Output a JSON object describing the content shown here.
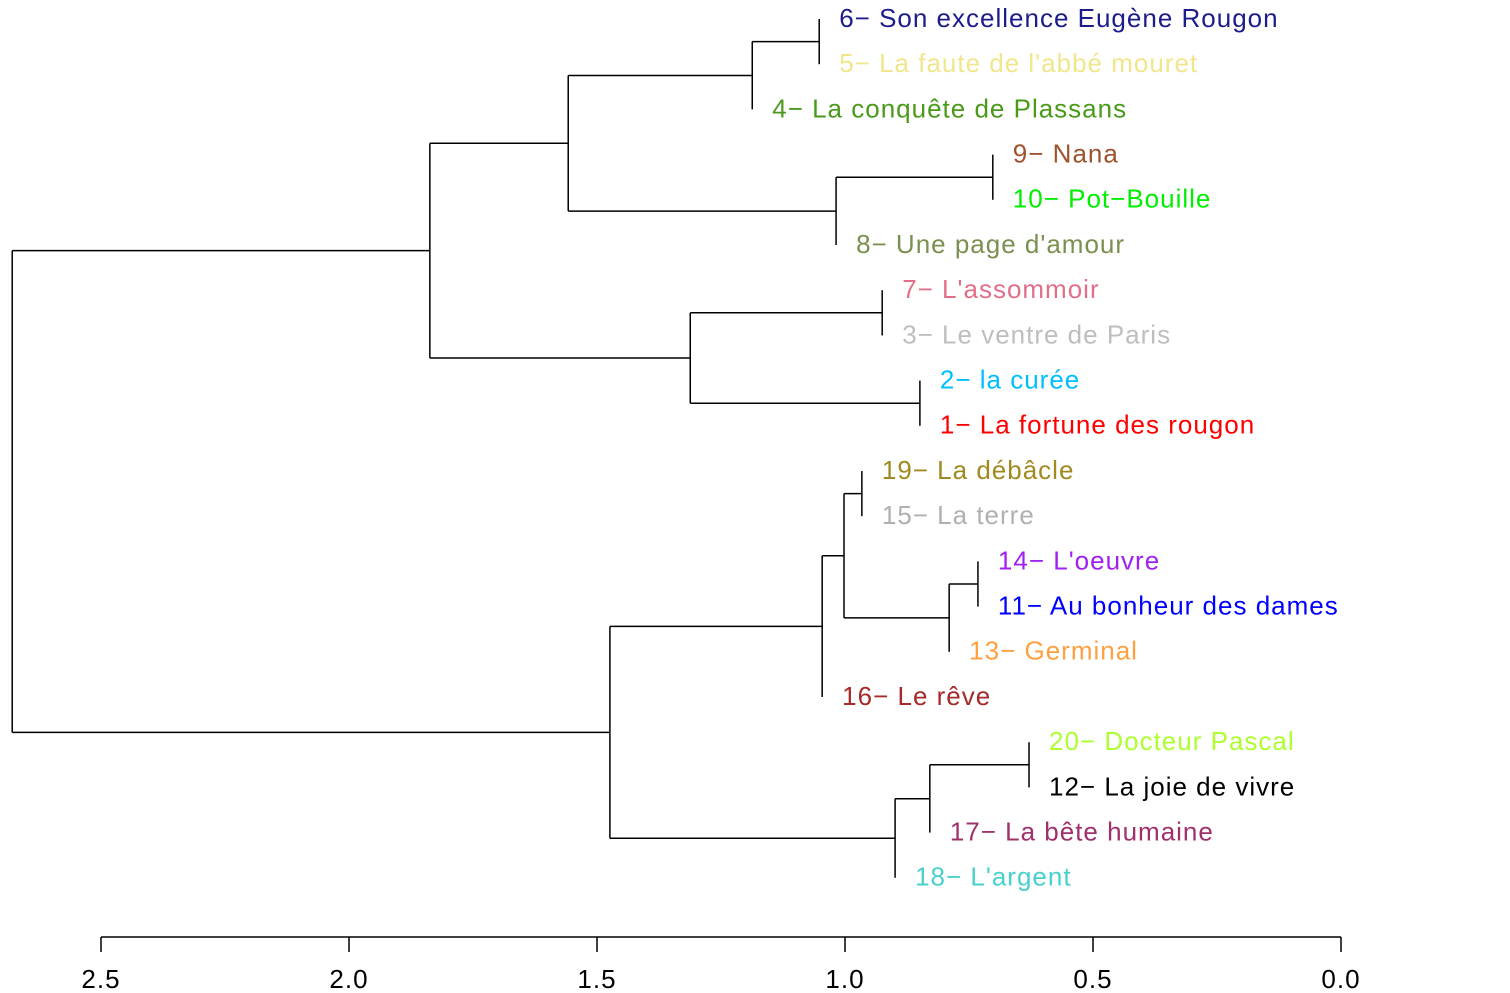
{
  "chart_data": {
    "type": "dendrogram",
    "xlim": [
      2.5,
      0
    ],
    "xticks": [
      {
        "value": 2.5,
        "label": "2.5"
      },
      {
        "value": 2.0,
        "label": "2.0"
      },
      {
        "value": 1.5,
        "label": "1.5"
      },
      {
        "value": 1.0,
        "label": "1.0"
      },
      {
        "value": 0.5,
        "label": "0.5"
      },
      {
        "value": 0.0,
        "label": "0.0"
      }
    ],
    "tree": {
      "height": 2.679,
      "children": [
        {
          "height": 1.837,
          "children": [
            {
              "height": 1.558,
              "children": [
                {
                  "height": 1.187,
                  "children": [
                    {
                      "height": 1.052,
                      "children": [
                        {
                          "label": "6− Son excellence Eugène Rougon",
                          "color": "#1c1c8a"
                        },
                        {
                          "label": "5− La faute de l'abbé mouret",
                          "color": "#f0e68c"
                        }
                      ]
                    },
                    {
                      "label": "4− La conquête de Plassans",
                      "color": "#4a9a1a"
                    }
                  ]
                },
                {
                  "height": 1.018,
                  "children": [
                    {
                      "height": 0.702,
                      "children": [
                        {
                          "label": "9− Nana",
                          "color": "#a0522d"
                        },
                        {
                          "label": "10− Pot−Bouille",
                          "color": "#00ee00"
                        }
                      ]
                    },
                    {
                      "label": "8− Une page d'amour",
                      "color": "#7a9050"
                    }
                  ]
                }
              ]
            },
            {
              "height": 1.312,
              "children": [
                {
                  "height": 0.925,
                  "children": [
                    {
                      "label": "7− L'assommoir",
                      "color": "#e0708a"
                    },
                    {
                      "label": "3− Le ventre de Paris",
                      "color": "#bebebe"
                    }
                  ]
                },
                {
                  "height": 0.849,
                  "children": [
                    {
                      "label": "2− la curée",
                      "color": "#00bfff"
                    },
                    {
                      "label": "1− La fortune des rougon",
                      "color": "#ff0000"
                    }
                  ]
                }
              ]
            }
          ]
        },
        {
          "height": 1.474,
          "children": [
            {
              "height": 1.046,
              "children": [
                {
                  "height": 1.002,
                  "children": [
                    {
                      "height": 0.966,
                      "children": [
                        {
                          "label": "19− La débâcle",
                          "color": "#a08a20"
                        },
                        {
                          "label": "15− La terre",
                          "color": "#b0b0b0"
                        }
                      ]
                    },
                    {
                      "height": 0.79,
                      "children": [
                        {
                          "height": 0.732,
                          "children": [
                            {
                              "label": "14− L'oeuvre",
                              "color": "#a020f0"
                            },
                            {
                              "label": "11− Au bonheur des dames",
                              "color": "#0000ff"
                            }
                          ]
                        },
                        {
                          "label": "13− Germinal",
                          "color": "#ffa040"
                        }
                      ]
                    }
                  ]
                },
                {
                  "label": "16− Le rêve",
                  "color": "#a52a2a"
                }
              ]
            },
            {
              "height": 0.899,
              "children": [
                {
                  "height": 0.829,
                  "children": [
                    {
                      "height": 0.629,
                      "children": [
                        {
                          "label": "20− Docteur Pascal",
                          "color": "#adff2f"
                        },
                        {
                          "label": "12− La joie de vivre",
                          "color": "#000000"
                        }
                      ]
                    },
                    {
                      "label": "17− La bête humaine",
                      "color": "#a0306a"
                    }
                  ]
                },
                {
                  "label": "18− L'argent",
                  "color": "#48d1cc"
                }
              ]
            }
          ]
        }
      ]
    }
  }
}
